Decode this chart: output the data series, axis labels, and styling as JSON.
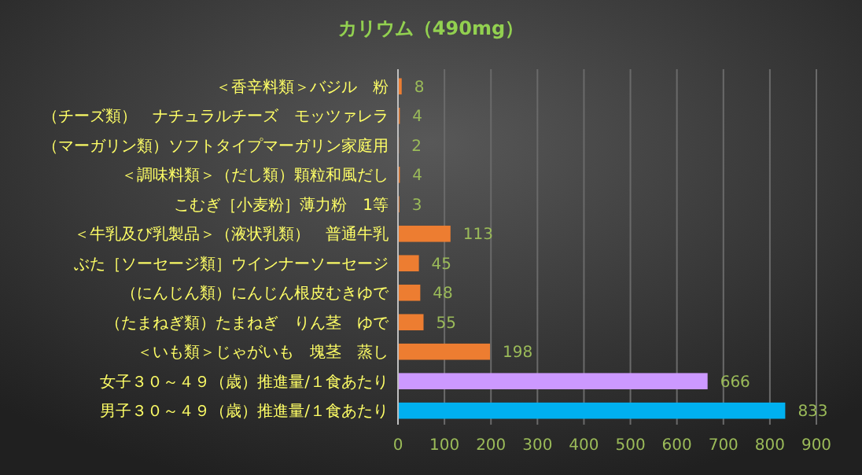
{
  "chart_data": {
    "type": "bar",
    "orientation": "horizontal",
    "title": "カリウム（490mg）",
    "categories": [
      "＜香辛料類＞バジル　粉",
      "（チーズ類）　ナチュラルチーズ　モッツァレラ",
      "（マーガリン類）ソフトタイプマーガリン家庭用",
      "＜調味料類＞（だし類）顆粒和風だし",
      "こむぎ［小麦粉］薄力粉　1等",
      "＜牛乳及び乳製品＞（液状乳類）　普通牛乳",
      "ぶた［ソーセージ類］ウインナーソーセージ",
      "（にんじん類）にんじん根皮むきゆで",
      "（たまねぎ類）たまねぎ　りん茎　ゆで",
      "＜いも類＞じゃがいも　塊茎　蒸し",
      "女子３０～４９（歳）推進量/１食あたり",
      "男子３０～４９（歳）推進量/１食あたり"
    ],
    "values": [
      8,
      4,
      2,
      4,
      3,
      113,
      45,
      48,
      55,
      198,
      666,
      833
    ],
    "colors": [
      "#ed7d31",
      "#ed7d31",
      "#ed7d31",
      "#ed7d31",
      "#ed7d31",
      "#ed7d31",
      "#ed7d31",
      "#ed7d31",
      "#ed7d31",
      "#ed7d31",
      "#cc99ff",
      "#00b0f0"
    ],
    "xlim": [
      0,
      900
    ],
    "xticks": [
      0,
      100,
      200,
      300,
      400,
      500,
      600,
      700,
      800,
      900
    ],
    "grid": "x",
    "data_labels": true
  }
}
